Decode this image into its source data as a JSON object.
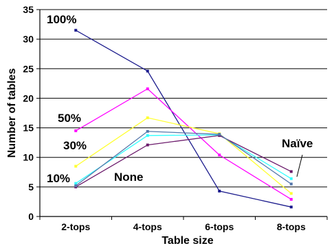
{
  "chart_data": {
    "type": "line",
    "title": "",
    "xlabel": "Table size",
    "ylabel": "Number of tables",
    "categories": [
      "2-tops",
      "4-tops",
      "6-tops",
      "8-tops"
    ],
    "ylim": [
      0,
      35
    ],
    "yticks": [
      0,
      5,
      10,
      15,
      20,
      25,
      30,
      35
    ],
    "grid": "horizontal",
    "legend": "none",
    "series": [
      {
        "name": "100%",
        "color": "#1a1a8c",
        "values": [
          31.5,
          24.6,
          4.3,
          1.6
        ]
      },
      {
        "name": "50%",
        "color": "#ff00ff",
        "values": [
          14.5,
          21.6,
          10.4,
          2.9
        ]
      },
      {
        "name": "30%",
        "color": "#ffff33",
        "values": [
          8.5,
          16.7,
          14.0,
          3.9
        ]
      },
      {
        "name": "10%",
        "color": "#33ffff",
        "values": [
          5.6,
          13.7,
          13.8,
          6.4
        ]
      },
      {
        "name": "None",
        "color": "#6b1a6b",
        "values": [
          5.0,
          12.1,
          13.7,
          7.6
        ]
      },
      {
        "name": "Naïve",
        "color": "#5577aa",
        "values": [
          5.2,
          14.4,
          13.9,
          5.5
        ]
      }
    ],
    "annotations": [
      "100%",
      "50%",
      "30%",
      "10%",
      "None",
      "Naïve"
    ]
  }
}
